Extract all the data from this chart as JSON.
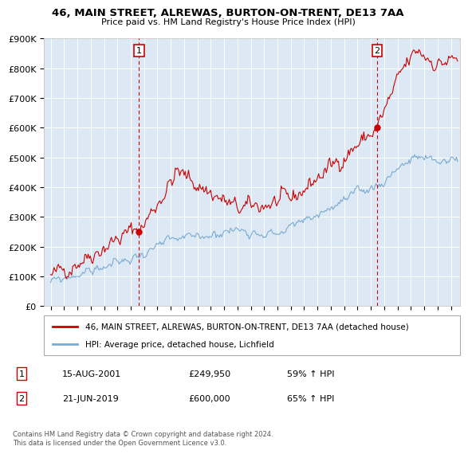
{
  "title": "46, MAIN STREET, ALREWAS, BURTON-ON-TRENT, DE13 7AA",
  "subtitle": "Price paid vs. HM Land Registry's House Price Index (HPI)",
  "red_label": "46, MAIN STREET, ALREWAS, BURTON-ON-TRENT, DE13 7AA (detached house)",
  "blue_label": "HPI: Average price, detached house, Lichfield",
  "annotation1_date": "15-AUG-2001",
  "annotation1_price": "£249,950",
  "annotation1_hpi": "59% ↑ HPI",
  "annotation2_date": "21-JUN-2019",
  "annotation2_price": "£600,000",
  "annotation2_hpi": "65% ↑ HPI",
  "footnote": "Contains HM Land Registry data © Crown copyright and database right 2024.\nThis data is licensed under the Open Government Licence v3.0.",
  "red_color": "#cc0000",
  "blue_color": "#7aaad0",
  "bg_color": "#dce9f5",
  "grid_color": "#ffffff",
  "ylim": [
    0,
    900000
  ],
  "ytick_vals": [
    0,
    100000,
    200000,
    300000,
    400000,
    500000,
    600000,
    700000,
    800000,
    900000
  ],
  "ytick_labels": [
    "£0",
    "£100K",
    "£200K",
    "£300K",
    "£400K",
    "£500K",
    "£600K",
    "£700K",
    "£800K",
    "£900K"
  ],
  "xlim_start": 1994.5,
  "xlim_end": 2025.7,
  "sale1_x": 2001.62,
  "sale1_y": 249950,
  "sale2_x": 2019.47,
  "sale2_y": 600000,
  "num_points": 370
}
